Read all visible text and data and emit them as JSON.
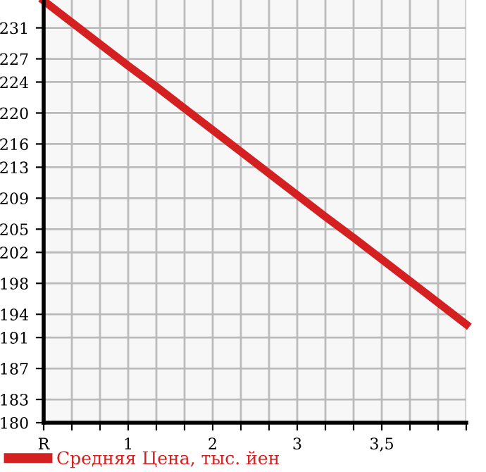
{
  "chart_data": {
    "type": "line",
    "categories": [
      "R",
      null,
      null,
      "1",
      null,
      null,
      "2",
      null,
      null,
      "3",
      null,
      null,
      "3,5",
      null,
      null,
      null
    ],
    "series": [
      {
        "name": "Средняя Цена, тыс. йен",
        "color": "#d42020",
        "values": [
          234.5,
          231.7,
          228.9,
          226.1,
          223.4,
          220.6,
          217.8,
          215.0,
          212.2,
          209.4,
          206.6,
          203.9,
          201.1,
          198.3,
          195.5,
          192.7
        ]
      }
    ],
    "ylim": [
      180,
      234.6
    ],
    "yticks": [
      180,
      183,
      187,
      191,
      194,
      198,
      202,
      205,
      209,
      213,
      216,
      220,
      224,
      227,
      231
    ],
    "grid": true,
    "legend": "bottom left",
    "marker": "none",
    "line_style": "solid"
  }
}
